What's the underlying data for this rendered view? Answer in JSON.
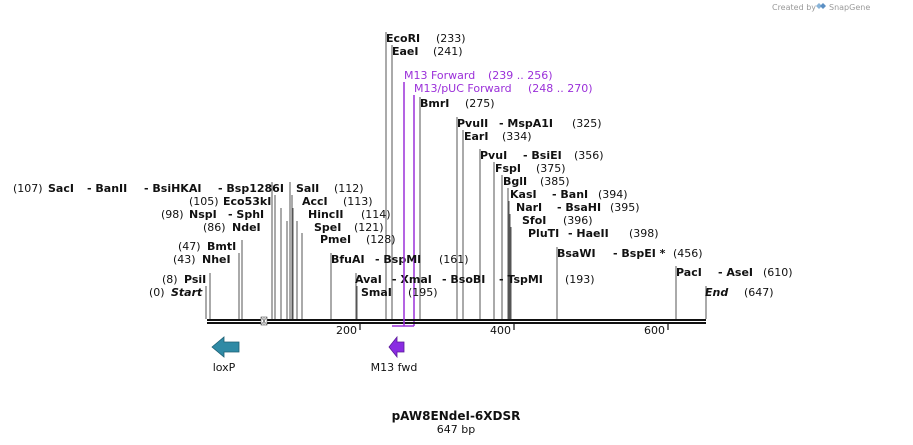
{
  "credit": "Created by",
  "brand": "SnapGene",
  "map": {
    "name": "pAW8ENdeI-6XDSR",
    "length_label": "647 bp",
    "length": 647
  },
  "ticks": [
    "200",
    "400",
    "600"
  ],
  "features": [
    {
      "label": "loxP",
      "color": "#2f8aa5",
      "direction": "reverse"
    },
    {
      "label": "M13 fwd",
      "color": "#8a2be2",
      "direction": "reverse"
    }
  ],
  "primers": [
    {
      "name": "M13 Forward",
      "range": "(239 .. 256)"
    },
    {
      "name": "M13/pUC Forward",
      "range": "(248 .. 270)"
    }
  ],
  "sites": [
    {
      "parts": [
        "(107)",
        "SacI",
        "- BanII",
        "- BsiHKAI",
        "- Bsp1286I"
      ]
    },
    {
      "parts": [
        "(105)",
        "Eco53kI"
      ]
    },
    {
      "parts": [
        "(98)",
        "NspI",
        "- SphI"
      ]
    },
    {
      "parts": [
        "(86)",
        "NdeI"
      ]
    },
    {
      "parts": [
        "(47)",
        "BmtI"
      ]
    },
    {
      "parts": [
        "(43)",
        "NheI"
      ]
    },
    {
      "parts": [
        "(8)",
        "PsiI"
      ]
    },
    {
      "parts": [
        "(0)",
        "Start"
      ]
    },
    {
      "parts": [
        "SalI",
        "(112)"
      ]
    },
    {
      "parts": [
        "AccI",
        "(113)"
      ]
    },
    {
      "parts": [
        "HincII",
        "(114)"
      ]
    },
    {
      "parts": [
        "SpeI",
        "(121)"
      ]
    },
    {
      "parts": [
        "PmeI",
        "(128)"
      ]
    },
    {
      "parts": [
        "BfuAI",
        "- BspMI",
        "(161)"
      ]
    },
    {
      "parts": [
        "AvaI",
        "- XmaI",
        "- BsoBI",
        "- TspMI",
        "(193)"
      ]
    },
    {
      "parts": [
        "SmaI",
        "(195)"
      ]
    },
    {
      "parts": [
        "EcoRI",
        "(233)"
      ]
    },
    {
      "parts": [
        "EaeI",
        "(241)"
      ]
    },
    {
      "parts": [
        "BmrI",
        "(275)"
      ]
    },
    {
      "parts": [
        "PvuII",
        "- MspA1I",
        "(325)"
      ]
    },
    {
      "parts": [
        "EarI",
        "(334)"
      ]
    },
    {
      "parts": [
        "PvuI",
        "- BsiEI",
        "(356)"
      ]
    },
    {
      "parts": [
        "FspI",
        "(375)"
      ]
    },
    {
      "parts": [
        "BglI",
        "(385)"
      ]
    },
    {
      "parts": [
        "KasI",
        "- BanI",
        "(394)"
      ]
    },
    {
      "parts": [
        "NarI",
        "- BsaHI",
        "(395)"
      ]
    },
    {
      "parts": [
        "SfoI",
        "(396)"
      ]
    },
    {
      "parts": [
        "PluTI",
        "- HaeII",
        "(398)"
      ]
    },
    {
      "parts": [
        "BsaWI",
        "- BspEI *",
        "(456)"
      ]
    },
    {
      "parts": [
        "PacI",
        "- AseI",
        "(610)"
      ]
    },
    {
      "parts": [
        "End",
        "(647)"
      ]
    }
  ]
}
